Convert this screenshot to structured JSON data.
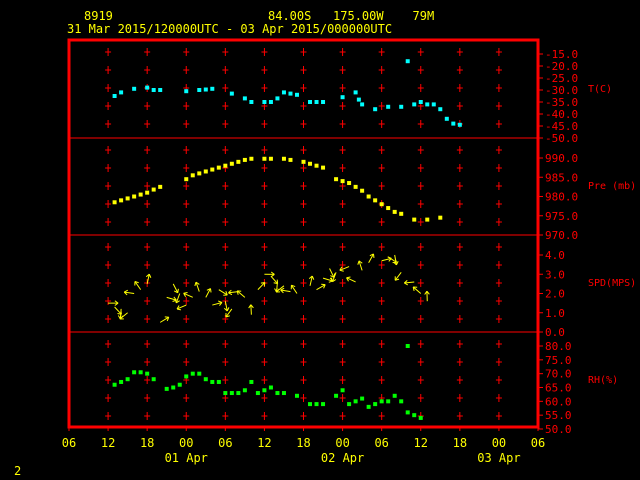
{
  "header": {
    "station_id": "8919",
    "location": "84.00S   175.00W    79M",
    "period": "31 Mar 2015/120000UTC - 03 Apr 2015/000000UTC"
  },
  "page_number": "2",
  "colors": {
    "background": "#000000",
    "frame": "#ff0000",
    "crosses": "#ff0000",
    "labels": "#ff0000",
    "x_axis_text": "#ffff00",
    "temperature": "#00ffff",
    "pressure": "#ffff00",
    "wind": "#ffff00",
    "humidity": "#00ff00"
  },
  "chart_data": {
    "type": "scatter",
    "x_unit": "hours from 31 Mar 2015 06 UTC",
    "x_tick_labels": [
      "06",
      "12",
      "18",
      "00",
      "06",
      "12",
      "18",
      "00",
      "06",
      "12",
      "18",
      "00",
      "06"
    ],
    "x_date_labels": [
      "01 Apr",
      "02 Apr",
      "03 Apr"
    ],
    "panels": [
      {
        "name": "temperature",
        "label": "T(C)",
        "ylim": [
          -50,
          -15
        ],
        "tick_values": [
          -15,
          -20,
          -25,
          -30,
          -35,
          -40,
          -45,
          -50
        ],
        "tick_labels": [
          "-15.0",
          "-20.0",
          "-25.0",
          "-30.0",
          "-35.0",
          "-40.0",
          "-45.0",
          "-50.0"
        ],
        "points": [
          [
            7,
            -32.5
          ],
          [
            8,
            -31
          ],
          [
            10,
            -29.5
          ],
          [
            12,
            -29
          ],
          [
            13,
            -30
          ],
          [
            14,
            -30
          ],
          [
            18,
            -30.5
          ],
          [
            20,
            -30
          ],
          [
            21,
            -29.8
          ],
          [
            22,
            -29.5
          ],
          [
            25,
            -31.5
          ],
          [
            27,
            -33.5
          ],
          [
            28,
            -35
          ],
          [
            30,
            -35
          ],
          [
            31,
            -35
          ],
          [
            32,
            -33.5
          ],
          [
            33,
            -31
          ],
          [
            34,
            -31.5
          ],
          [
            35,
            -32
          ],
          [
            37,
            -35
          ],
          [
            38,
            -35
          ],
          [
            39,
            -35
          ],
          [
            42,
            -33
          ],
          [
            44,
            -31
          ],
          [
            44.5,
            -34
          ],
          [
            45,
            -36
          ],
          [
            47,
            -38
          ],
          [
            49,
            -37
          ],
          [
            51,
            -37
          ],
          [
            52,
            -18
          ],
          [
            53,
            -36
          ],
          [
            54,
            -35
          ],
          [
            55,
            -36
          ],
          [
            56,
            -36
          ],
          [
            57,
            -38
          ],
          [
            58,
            -42
          ],
          [
            59,
            -44
          ],
          [
            60,
            -44.5
          ]
        ]
      },
      {
        "name": "pressure",
        "label": "Pre (mb)",
        "ylim": [
          970,
          995
        ],
        "tick_values": [
          995,
          990,
          985,
          980,
          975,
          970
        ],
        "tick_labels": [
          "",
          "990.0",
          "985.0",
          "980.0",
          "975.0",
          "970.0"
        ],
        "points": [
          [
            7,
            978.5
          ],
          [
            8,
            979
          ],
          [
            9,
            979.5
          ],
          [
            10,
            980
          ],
          [
            11,
            980.5
          ],
          [
            12,
            981
          ],
          [
            13,
            981.8
          ],
          [
            14,
            982.5
          ],
          [
            18,
            984.5
          ],
          [
            19,
            985.5
          ],
          [
            20,
            986
          ],
          [
            21,
            986.5
          ],
          [
            22,
            987
          ],
          [
            23,
            987.5
          ],
          [
            24,
            988
          ],
          [
            25,
            988.5
          ],
          [
            26,
            989
          ],
          [
            27,
            989.5
          ],
          [
            28,
            989.8
          ],
          [
            30,
            989.8
          ],
          [
            31,
            989.8
          ],
          [
            33,
            989.8
          ],
          [
            34,
            989.5
          ],
          [
            36,
            989
          ],
          [
            37,
            988.5
          ],
          [
            38,
            988
          ],
          [
            39,
            987.5
          ],
          [
            41,
            984.5
          ],
          [
            42,
            984
          ],
          [
            43,
            983.5
          ],
          [
            44,
            982.5
          ],
          [
            45,
            981.5
          ],
          [
            46,
            980
          ],
          [
            47,
            979
          ],
          [
            48,
            978
          ],
          [
            49,
            977
          ],
          [
            50,
            976
          ],
          [
            51,
            975.5
          ],
          [
            53,
            974
          ],
          [
            55,
            974
          ],
          [
            57,
            974.5
          ]
        ]
      },
      {
        "name": "wind",
        "label": "SPD(MPS)",
        "ylim": [
          0,
          4.5
        ],
        "tick_values": [
          4,
          3,
          2,
          1,
          0
        ],
        "tick_labels": [
          "4.0",
          "3.0",
          "2.0",
          "1.0",
          "0.0"
        ],
        "points": [
          [
            6,
            1.5
          ],
          [
            7,
            1.3
          ],
          [
            8,
            1.2
          ],
          [
            9,
            1.0
          ],
          [
            10,
            2.0
          ],
          [
            11,
            2.2
          ],
          [
            12,
            2.5
          ],
          [
            14,
            0.5
          ],
          [
            15,
            1.8
          ],
          [
            16,
            2.5
          ],
          [
            17,
            2.0
          ],
          [
            18,
            1.4
          ],
          [
            19,
            1.8
          ],
          [
            20,
            2.1
          ],
          [
            21,
            1.8
          ],
          [
            22,
            1.4
          ],
          [
            23,
            2.2
          ],
          [
            24,
            1.6
          ],
          [
            25,
            1.2
          ],
          [
            26,
            2.1
          ],
          [
            27,
            1.8
          ],
          [
            28,
            0.9
          ],
          [
            29,
            2.2
          ],
          [
            30,
            3.0
          ],
          [
            31,
            2.9
          ],
          [
            32,
            2.6
          ],
          [
            33,
            2.4
          ],
          [
            34,
            2.1
          ],
          [
            35,
            2.0
          ],
          [
            37,
            2.4
          ],
          [
            38,
            2.2
          ],
          [
            39,
            2.8
          ],
          [
            40,
            3.3
          ],
          [
            41,
            3.1
          ],
          [
            43,
            3.4
          ],
          [
            44,
            2.6
          ],
          [
            45,
            3.2
          ],
          [
            46,
            3.6
          ],
          [
            48,
            3.7
          ],
          [
            49,
            3.9
          ],
          [
            50,
            4.0
          ],
          [
            51,
            3.1
          ],
          [
            53,
            2.6
          ],
          [
            54,
            2.0
          ],
          [
            55,
            1.6
          ]
        ]
      },
      {
        "name": "humidity",
        "label": "RH(%)",
        "ylim": [
          50,
          85
        ],
        "tick_values": [
          80,
          75,
          70,
          65,
          60,
          55,
          50
        ],
        "tick_labels": [
          "80.0",
          "75.0",
          "70.0",
          "65.0",
          "60.0",
          "55.0",
          "50.0"
        ],
        "points": [
          [
            7,
            66
          ],
          [
            8,
            67
          ],
          [
            9,
            68
          ],
          [
            10,
            70.5
          ],
          [
            11,
            70.5
          ],
          [
            12,
            70
          ],
          [
            13,
            68
          ],
          [
            15,
            64.5
          ],
          [
            16,
            65
          ],
          [
            17,
            66
          ],
          [
            18,
            69
          ],
          [
            19,
            70
          ],
          [
            20,
            70
          ],
          [
            21,
            68
          ],
          [
            22,
            67
          ],
          [
            23,
            67
          ],
          [
            24,
            63
          ],
          [
            25,
            63
          ],
          [
            26,
            63
          ],
          [
            27,
            64
          ],
          [
            28,
            67
          ],
          [
            29,
            63
          ],
          [
            30,
            64
          ],
          [
            31,
            65
          ],
          [
            32,
            63
          ],
          [
            33,
            63
          ],
          [
            35,
            62
          ],
          [
            37,
            59
          ],
          [
            38,
            59
          ],
          [
            39,
            59
          ],
          [
            41,
            62
          ],
          [
            42,
            64
          ],
          [
            43,
            59
          ],
          [
            44,
            60
          ],
          [
            45,
            61
          ],
          [
            46,
            58
          ],
          [
            47,
            59
          ],
          [
            48,
            60
          ],
          [
            49,
            60
          ],
          [
            50,
            62
          ],
          [
            51,
            60
          ],
          [
            52,
            56
          ],
          [
            53,
            55
          ],
          [
            54,
            54
          ],
          [
            52,
            80
          ]
        ]
      }
    ]
  }
}
